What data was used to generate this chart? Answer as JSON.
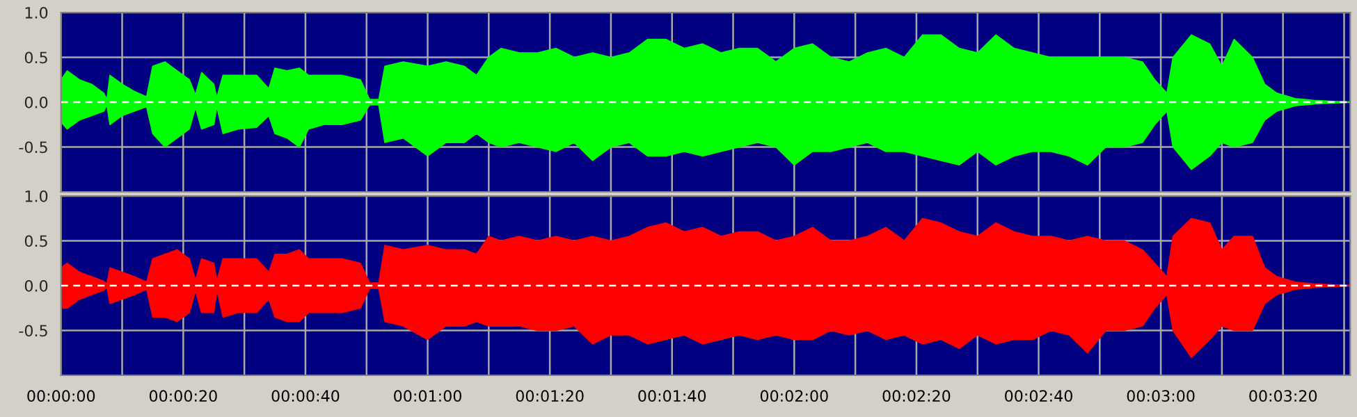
{
  "chart_data": [
    {
      "type": "area",
      "x": [
        0,
        1,
        3,
        5,
        7,
        7.5,
        8,
        10,
        12,
        14,
        15,
        17,
        19,
        21,
        22,
        23,
        25,
        25.5,
        26.5,
        29,
        32,
        34,
        35,
        37,
        39,
        40.5,
        43,
        46,
        49,
        50.5,
        52,
        53,
        56,
        60,
        63,
        66,
        68,
        70,
        72,
        75,
        78,
        81,
        84,
        87,
        90,
        93,
        96,
        99,
        102,
        105,
        108,
        111,
        114,
        117,
        120,
        123,
        126,
        129,
        132,
        135,
        138,
        141,
        144,
        147,
        150,
        153,
        156,
        159,
        162,
        165,
        168,
        171,
        174,
        177,
        179,
        181,
        182,
        185,
        188,
        190,
        192,
        195,
        197,
        199,
        202,
        205,
        211
      ],
      "series": [
        {
          "color": "#00ff00",
          "values": [
            0.25,
            0.35,
            0.25,
            0.2,
            0.1,
            0.03,
            0.3,
            0.2,
            0.12,
            0.06,
            0.4,
            0.45,
            0.35,
            0.25,
            0.08,
            0.33,
            0.2,
            0.05,
            0.3,
            0.3,
            0.3,
            0.15,
            0.38,
            0.35,
            0.38,
            0.3,
            0.3,
            0.3,
            0.25,
            0.03,
            0.03,
            0.4,
            0.45,
            0.4,
            0.45,
            0.4,
            0.3,
            0.5,
            0.6,
            0.55,
            0.55,
            0.6,
            0.5,
            0.55,
            0.5,
            0.55,
            0.7,
            0.7,
            0.6,
            0.65,
            0.55,
            0.6,
            0.6,
            0.45,
            0.6,
            0.65,
            0.5,
            0.45,
            0.55,
            0.6,
            0.5,
            0.75,
            0.75,
            0.6,
            0.55,
            0.75,
            0.6,
            0.55,
            0.5,
            0.5,
            0.5,
            0.5,
            0.5,
            0.45,
            0.25,
            0.1,
            0.5,
            0.75,
            0.65,
            0.4,
            0.7,
            0.5,
            0.2,
            0.1,
            0.04,
            0.02,
            0
          ]
        },
        {
          "color": "#00ff00",
          "values": [
            -0.22,
            -0.3,
            -0.2,
            -0.15,
            -0.1,
            -0.03,
            -0.25,
            -0.15,
            -0.1,
            -0.05,
            -0.35,
            -0.5,
            -0.4,
            -0.3,
            -0.06,
            -0.3,
            -0.25,
            -0.05,
            -0.35,
            -0.3,
            -0.28,
            -0.15,
            -0.35,
            -0.4,
            -0.5,
            -0.3,
            -0.25,
            -0.25,
            -0.2,
            -0.03,
            -0.03,
            -0.45,
            -0.4,
            -0.6,
            -0.45,
            -0.45,
            -0.35,
            -0.45,
            -0.5,
            -0.45,
            -0.5,
            -0.55,
            -0.45,
            -0.65,
            -0.5,
            -0.45,
            -0.6,
            -0.6,
            -0.55,
            -0.6,
            -0.55,
            -0.5,
            -0.45,
            -0.5,
            -0.7,
            -0.55,
            -0.55,
            -0.5,
            -0.45,
            -0.55,
            -0.55,
            -0.6,
            -0.65,
            -0.7,
            -0.55,
            -0.7,
            -0.6,
            -0.55,
            -0.55,
            -0.6,
            -0.7,
            -0.5,
            -0.5,
            -0.45,
            -0.25,
            -0.1,
            -0.5,
            -0.75,
            -0.6,
            -0.45,
            -0.5,
            -0.45,
            -0.2,
            -0.1,
            -0.04,
            -0.02,
            0
          ]
        }
      ],
      "ref_lines": [
        {
          "axis": "y",
          "value": 0,
          "color": "#ffffff",
          "line_style": "dashed"
        }
      ],
      "xlim": [
        0,
        211
      ],
      "ylim": [
        -1,
        1
      ],
      "xticks": [
        {
          "value": 0,
          "label": null
        },
        {
          "value": 10,
          "label": null
        },
        {
          "value": 20,
          "label": null
        },
        {
          "value": 30,
          "label": null
        },
        {
          "value": 40,
          "label": null
        },
        {
          "value": 50,
          "label": null
        },
        {
          "value": 60,
          "label": null
        },
        {
          "value": 70,
          "label": null
        },
        {
          "value": 80,
          "label": null
        },
        {
          "value": 90,
          "label": null
        },
        {
          "value": 100,
          "label": null
        },
        {
          "value": 110,
          "label": null
        },
        {
          "value": 120,
          "label": null
        },
        {
          "value": 130,
          "label": null
        },
        {
          "value": 140,
          "label": null
        },
        {
          "value": 150,
          "label": null
        },
        {
          "value": 160,
          "label": null
        },
        {
          "value": 170,
          "label": null
        },
        {
          "value": 180,
          "label": null
        },
        {
          "value": 190,
          "label": null
        },
        {
          "value": 200,
          "label": null
        },
        {
          "value": 210,
          "label": null
        }
      ],
      "yticks": [
        {
          "value": -0.5,
          "label": "-0.5"
        },
        {
          "value": 0,
          "label": "0.0"
        },
        {
          "value": 0.5,
          "label": "0.5"
        },
        {
          "value": 1,
          "label": "1.0"
        }
      ],
      "tick_labels": "y",
      "grid": true
    },
    {
      "type": "area",
      "x": [
        0,
        1,
        3,
        5,
        7,
        7.5,
        8,
        10,
        12,
        14,
        15,
        17,
        19,
        21,
        22,
        23,
        25,
        25.5,
        26.5,
        29,
        32,
        34,
        35,
        37,
        39,
        40.5,
        43,
        46,
        49,
        50.5,
        52,
        53,
        56,
        60,
        63,
        66,
        68,
        70,
        72,
        75,
        78,
        81,
        84,
        87,
        90,
        93,
        96,
        99,
        102,
        105,
        108,
        111,
        114,
        117,
        120,
        123,
        126,
        129,
        132,
        135,
        138,
        141,
        144,
        147,
        150,
        153,
        156,
        159,
        162,
        165,
        168,
        171,
        174,
        177,
        179,
        181,
        182,
        185,
        188,
        190,
        192,
        195,
        197,
        199,
        202,
        205,
        211
      ],
      "series": [
        {
          "color": "#ff0000",
          "values": [
            0.2,
            0.25,
            0.15,
            0.1,
            0.05,
            0.02,
            0.2,
            0.15,
            0.1,
            0.04,
            0.3,
            0.35,
            0.4,
            0.3,
            0.06,
            0.3,
            0.25,
            0.05,
            0.3,
            0.3,
            0.3,
            0.15,
            0.35,
            0.35,
            0.4,
            0.3,
            0.3,
            0.3,
            0.25,
            0.03,
            0.03,
            0.45,
            0.4,
            0.45,
            0.4,
            0.4,
            0.35,
            0.55,
            0.5,
            0.55,
            0.5,
            0.55,
            0.5,
            0.55,
            0.5,
            0.55,
            0.65,
            0.7,
            0.6,
            0.65,
            0.55,
            0.6,
            0.6,
            0.5,
            0.55,
            0.65,
            0.5,
            0.5,
            0.55,
            0.65,
            0.5,
            0.75,
            0.7,
            0.6,
            0.55,
            0.7,
            0.6,
            0.55,
            0.55,
            0.5,
            0.55,
            0.5,
            0.5,
            0.4,
            0.25,
            0.1,
            0.55,
            0.75,
            0.7,
            0.4,
            0.55,
            0.55,
            0.2,
            0.1,
            0.04,
            0.02,
            0
          ]
        },
        {
          "color": "#ff0000",
          "values": [
            -0.25,
            -0.25,
            -0.15,
            -0.1,
            -0.05,
            -0.02,
            -0.2,
            -0.15,
            -0.1,
            -0.04,
            -0.35,
            -0.35,
            -0.4,
            -0.3,
            -0.06,
            -0.3,
            -0.3,
            -0.05,
            -0.35,
            -0.3,
            -0.3,
            -0.15,
            -0.35,
            -0.4,
            -0.4,
            -0.3,
            -0.3,
            -0.3,
            -0.25,
            -0.03,
            -0.03,
            -0.4,
            -0.45,
            -0.6,
            -0.45,
            -0.45,
            -0.4,
            -0.45,
            -0.45,
            -0.45,
            -0.5,
            -0.5,
            -0.45,
            -0.65,
            -0.55,
            -0.55,
            -0.65,
            -0.6,
            -0.55,
            -0.65,
            -0.6,
            -0.55,
            -0.6,
            -0.55,
            -0.6,
            -0.6,
            -0.5,
            -0.55,
            -0.5,
            -0.6,
            -0.55,
            -0.65,
            -0.6,
            -0.7,
            -0.55,
            -0.65,
            -0.6,
            -0.6,
            -0.5,
            -0.55,
            -0.75,
            -0.5,
            -0.5,
            -0.45,
            -0.25,
            -0.1,
            -0.5,
            -0.8,
            -0.6,
            -0.45,
            -0.5,
            -0.5,
            -0.2,
            -0.1,
            -0.04,
            -0.02,
            0
          ]
        }
      ],
      "ref_lines": [
        {
          "axis": "y",
          "value": 0,
          "color": "#ffffff",
          "line_style": "dashed"
        }
      ],
      "xlim": [
        0,
        211
      ],
      "ylim": [
        -1,
        1
      ],
      "xticks": [
        {
          "value": 0,
          "label": "00:00:00"
        },
        {
          "value": 10,
          "label": null
        },
        {
          "value": 20,
          "label": "00:00:20"
        },
        {
          "value": 30,
          "label": null
        },
        {
          "value": 40,
          "label": "00:00:40"
        },
        {
          "value": 50,
          "label": null
        },
        {
          "value": 60,
          "label": "00:01:00"
        },
        {
          "value": 70,
          "label": null
        },
        {
          "value": 80,
          "label": "00:01:20"
        },
        {
          "value": 90,
          "label": null
        },
        {
          "value": 100,
          "label": "00:01:40"
        },
        {
          "value": 110,
          "label": null
        },
        {
          "value": 120,
          "label": "00:02:00"
        },
        {
          "value": 130,
          "label": null
        },
        {
          "value": 140,
          "label": "00:02:20"
        },
        {
          "value": 150,
          "label": null
        },
        {
          "value": 160,
          "label": "00:02:40"
        },
        {
          "value": 170,
          "label": null
        },
        {
          "value": 180,
          "label": "00:03:00"
        },
        {
          "value": 190,
          "label": null
        },
        {
          "value": 200,
          "label": "00:03:20"
        },
        {
          "value": 210,
          "label": null
        }
      ],
      "yticks": [
        {
          "value": -0.5,
          "label": "-0.5"
        },
        {
          "value": 0,
          "label": "0.0"
        },
        {
          "value": 0.5,
          "label": "0.5"
        },
        {
          "value": 1,
          "label": "1.0"
        }
      ],
      "grid": true
    }
  ]
}
